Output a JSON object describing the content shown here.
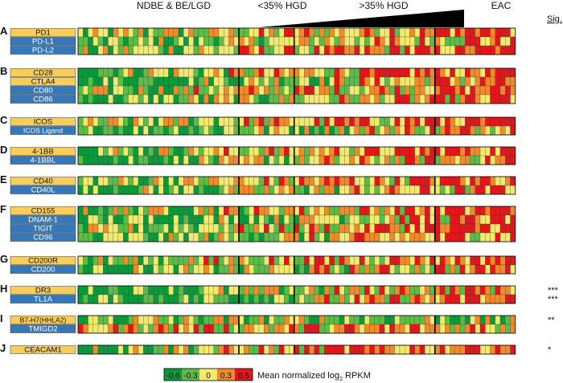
{
  "chart_data": {
    "type": "heatmap",
    "column_groups": [
      {
        "label": "NDBE & BE/LGD",
        "n": 32
      },
      {
        "label": "<35% HGD",
        "n": 11
      },
      {
        "label": ">35% HGD",
        "n": 28
      },
      {
        "label": "EAC",
        "n": 16
      }
    ],
    "sig_header": "Sig.",
    "color_scale": {
      "label": "Mean normalized log",
      "label_sub": "2",
      "label_suffix": " RPKM",
      "ticks": [
        "-0.6",
        "-0.3",
        "0",
        "0.3",
        "0.6"
      ],
      "colors": [
        "#0a9a3c",
        "#5cbc48",
        "#f2ea6e",
        "#f08a2a",
        "#e3161b"
      ]
    },
    "panels": [
      {
        "letter": "A",
        "rows": [
          {
            "label": "PD1",
            "color": "#f7cd5c"
          },
          {
            "label": "PD-L1",
            "color": "#3478ba"
          },
          {
            "label": "PD-L2",
            "color": "#3478ba"
          }
        ],
        "sig": []
      },
      {
        "letter": "B",
        "rows": [
          {
            "label": "CD28",
            "color": "#f7cd5c"
          },
          {
            "label": "CTLA4",
            "color": "#f7cd5c"
          },
          {
            "label": "CD80",
            "color": "#3478ba"
          },
          {
            "label": "CD86",
            "color": "#3478ba"
          }
        ],
        "sig": []
      },
      {
        "letter": "C",
        "rows": [
          {
            "label": "ICOS",
            "color": "#f7cd5c"
          },
          {
            "label": "ICOS Ligand",
            "color": "#3478ba"
          }
        ],
        "sig": []
      },
      {
        "letter": "D",
        "rows": [
          {
            "label": "4-1BB",
            "color": "#f7cd5c"
          },
          {
            "label": "4-1BBL",
            "color": "#3478ba"
          }
        ],
        "sig": []
      },
      {
        "letter": "E",
        "rows": [
          {
            "label": "CD40",
            "color": "#f7cd5c"
          },
          {
            "label": "CD40L",
            "color": "#3478ba"
          }
        ],
        "sig": []
      },
      {
        "letter": "F",
        "rows": [
          {
            "label": "CD155",
            "color": "#f7cd5c"
          },
          {
            "label": "DNAM-1",
            "color": "#3478ba"
          },
          {
            "label": "TIGIT",
            "color": "#3478ba"
          },
          {
            "label": "CD96",
            "color": "#3478ba"
          }
        ],
        "sig": []
      },
      {
        "letter": "G",
        "rows": [
          {
            "label": "CD200R",
            "color": "#f7cd5c"
          },
          {
            "label": "CD200",
            "color": "#3478ba"
          }
        ],
        "sig": []
      },
      {
        "letter": "H",
        "rows": [
          {
            "label": "DR3",
            "color": "#f7cd5c"
          },
          {
            "label": "TL1A",
            "color": "#3478ba"
          }
        ],
        "sig": [
          "***",
          "***"
        ]
      },
      {
        "letter": "I",
        "rows": [
          {
            "label": "B7-H7(HHLA2)",
            "color": "#f7cd5c"
          },
          {
            "label": "TMIGD2",
            "color": "#3478ba"
          }
        ],
        "sig": [
          "**",
          ""
        ]
      },
      {
        "letter": "J",
        "rows": [
          {
            "label": "CEACAM1",
            "color": "#f7cd5c"
          }
        ],
        "sig": [
          "*"
        ]
      }
    ]
  }
}
